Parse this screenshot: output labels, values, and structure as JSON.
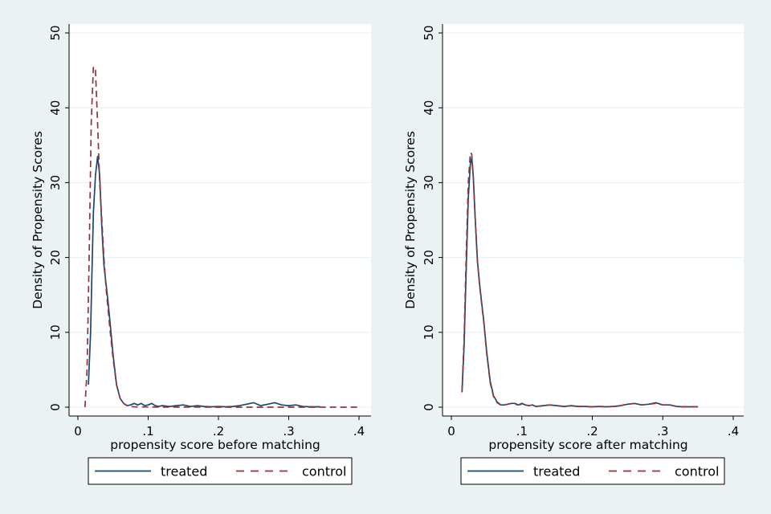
{
  "chart_data": [
    {
      "type": "line",
      "xlabel": "propensity score before matching",
      "ylabel": "Density of Propensity Scores",
      "xlim": [
        0,
        0.4
      ],
      "ylim": [
        0,
        50
      ],
      "xticks": [
        0,
        0.1,
        0.2,
        0.3,
        0.4
      ],
      "xtick_labels": [
        "0",
        ".1",
        ".2",
        ".3",
        ".4"
      ],
      "yticks": [
        0,
        10,
        20,
        30,
        40,
        50
      ],
      "ytick_labels": [
        "0",
        "10",
        "20",
        "30",
        "40",
        "50"
      ],
      "grid": "horizontal",
      "legend": {
        "position": "bottom",
        "labels": [
          "treated",
          "control"
        ]
      },
      "series": [
        {
          "name": "treated",
          "color": "#1a476f",
          "style": "solid",
          "x": [
            0.015,
            0.018,
            0.02,
            0.022,
            0.025,
            0.028,
            0.031,
            0.034,
            0.037,
            0.04,
            0.043,
            0.046,
            0.05,
            0.055,
            0.06,
            0.065,
            0.07,
            0.075,
            0.08,
            0.085,
            0.09,
            0.095,
            0.1,
            0.105,
            0.11,
            0.115,
            0.12,
            0.13,
            0.14,
            0.15,
            0.16,
            0.17,
            0.18,
            0.19,
            0.2,
            0.21,
            0.22,
            0.23,
            0.24,
            0.25,
            0.26,
            0.27,
            0.28,
            0.29,
            0.3,
            0.31,
            0.32,
            0.33,
            0.345
          ],
          "values": [
            3,
            10,
            18,
            26,
            31,
            33.5,
            31,
            24,
            19,
            16.5,
            14,
            11,
            7,
            3,
            1.2,
            0.5,
            0.2,
            0.3,
            0.5,
            0.3,
            0.5,
            0.2,
            0.3,
            0.5,
            0.2,
            0.1,
            0.2,
            0.1,
            0.2,
            0.3,
            0.1,
            0.2,
            0.1,
            0.05,
            0.1,
            0.05,
            0.1,
            0.2,
            0.4,
            0.6,
            0.2,
            0.4,
            0.6,
            0.3,
            0.2,
            0.3,
            0.1,
            0.05,
            0.05
          ]
        },
        {
          "name": "control",
          "color": "#90353b",
          "style": "dashed",
          "x": [
            0.01,
            0.013,
            0.016,
            0.019,
            0.022,
            0.025,
            0.028,
            0.031,
            0.034,
            0.037,
            0.04,
            0.043,
            0.046,
            0.05,
            0.055,
            0.06,
            0.065,
            0.07,
            0.075,
            0.08,
            0.09,
            0.1,
            0.12,
            0.15,
            0.2,
            0.25,
            0.3,
            0.35,
            0.4
          ],
          "values": [
            0,
            5,
            20,
            38,
            45.5,
            45,
            38,
            30,
            25,
            20,
            16,
            13,
            10,
            6.5,
            3,
            1.2,
            0.5,
            0.2,
            0.1,
            0.05,
            0.03,
            0.02,
            0.01,
            0.01,
            0,
            0,
            0,
            0,
            0
          ]
        }
      ]
    },
    {
      "type": "line",
      "xlabel": "propensity score after matching",
      "ylabel": "Density of Propensity Scores",
      "xlim": [
        0,
        0.4
      ],
      "ylim": [
        0,
        50
      ],
      "xticks": [
        0,
        0.1,
        0.2,
        0.3,
        0.4
      ],
      "xtick_labels": [
        "0",
        ".1",
        ".2",
        ".3",
        ".4"
      ],
      "yticks": [
        0,
        10,
        20,
        30,
        40,
        50
      ],
      "ytick_labels": [
        "0",
        "10",
        "20",
        "30",
        "40",
        "50"
      ],
      "grid": "horizontal",
      "legend": {
        "position": "bottom",
        "labels": [
          "treated",
          "control"
        ]
      },
      "series": [
        {
          "name": "treated",
          "color": "#1a476f",
          "style": "solid",
          "x": [
            0.015,
            0.018,
            0.021,
            0.024,
            0.027,
            0.029,
            0.031,
            0.034,
            0.037,
            0.04,
            0.043,
            0.046,
            0.05,
            0.055,
            0.06,
            0.065,
            0.07,
            0.075,
            0.08,
            0.085,
            0.09,
            0.095,
            0.1,
            0.105,
            0.11,
            0.115,
            0.12,
            0.13,
            0.14,
            0.15,
            0.16,
            0.17,
            0.18,
            0.19,
            0.2,
            0.21,
            0.22,
            0.23,
            0.24,
            0.25,
            0.26,
            0.27,
            0.28,
            0.29,
            0.3,
            0.31,
            0.32,
            0.33,
            0.35
          ],
          "values": [
            2,
            8,
            18,
            28,
            32.5,
            33.3,
            31,
            25,
            19.5,
            16.5,
            14,
            11.5,
            7.5,
            3.5,
            1.5,
            0.7,
            0.3,
            0.3,
            0.4,
            0.5,
            0.5,
            0.3,
            0.5,
            0.3,
            0.2,
            0.3,
            0.1,
            0.2,
            0.3,
            0.2,
            0.1,
            0.2,
            0.1,
            0.1,
            0.05,
            0.1,
            0.05,
            0.1,
            0.2,
            0.4,
            0.5,
            0.3,
            0.4,
            0.6,
            0.3,
            0.3,
            0.1,
            0.05,
            0.05
          ]
        },
        {
          "name": "control",
          "color": "#90353b",
          "style": "dashed",
          "x": [
            0.015,
            0.018,
            0.021,
            0.024,
            0.027,
            0.029,
            0.031,
            0.034,
            0.037,
            0.04,
            0.043,
            0.046,
            0.05,
            0.055,
            0.06,
            0.065,
            0.07,
            0.075,
            0.08,
            0.085,
            0.09,
            0.095,
            0.1,
            0.105,
            0.11,
            0.115,
            0.12,
            0.13,
            0.14,
            0.15,
            0.16,
            0.17,
            0.18,
            0.19,
            0.2,
            0.21,
            0.22,
            0.23,
            0.24,
            0.25,
            0.26,
            0.27,
            0.28,
            0.29,
            0.3,
            0.31,
            0.32,
            0.33,
            0.35
          ],
          "values": [
            2,
            9,
            20,
            30,
            34,
            33.8,
            31,
            25,
            19.5,
            16.3,
            13.8,
            11.3,
            7.3,
            3.3,
            1.4,
            0.6,
            0.3,
            0.3,
            0.4,
            0.5,
            0.4,
            0.3,
            0.4,
            0.3,
            0.2,
            0.3,
            0.1,
            0.2,
            0.3,
            0.2,
            0.1,
            0.2,
            0.1,
            0.1,
            0.05,
            0.1,
            0.05,
            0.1,
            0.2,
            0.4,
            0.5,
            0.3,
            0.4,
            0.5,
            0.3,
            0.3,
            0.1,
            0.05,
            0.05
          ]
        }
      ]
    }
  ]
}
